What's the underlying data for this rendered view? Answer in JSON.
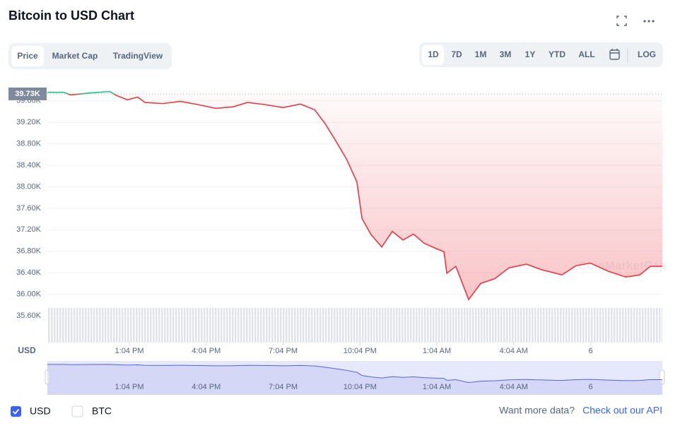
{
  "ui": {
    "title": "Bitcoin to USD Chart",
    "tabs": [
      "Price",
      "Market Cap",
      "TradingView"
    ],
    "ranges": [
      "1D",
      "7D",
      "1M",
      "3M",
      "1Y",
      "YTD",
      "ALL"
    ],
    "log": "LOG",
    "currencies": [
      "USD",
      "BTC"
    ],
    "footer": "Want more data?",
    "link": "Check out our API",
    "watermark": "CoinMarketCap"
  },
  "chart_data": {
    "type": "line",
    "y_label": "USD",
    "x": [
      0,
      0.63,
      0.91,
      1.74,
      2.43,
      2.7,
      3.12,
      3.53,
      3.81,
      4.5,
      5.19,
      5.88,
      6.57,
      7.26,
      7.81,
      8.5,
      9.19,
      9.88,
      10.43,
      10.84,
      11.26,
      11.67,
      12.08,
      12.28,
      12.63,
      13.05,
      13.46,
      13.88,
      14.29,
      14.7,
      15.12,
      15.48,
      15.59,
      15.94,
      16.44,
      16.91,
      17.46,
      18.01,
      18.7,
      19.26,
      20.08,
      20.63,
      21.19,
      21.88,
      22.57,
      23.12,
      23.53,
      24
    ],
    "series": [
      {
        "name": "USD",
        "values": [
          39760,
          39760,
          39710,
          39750,
          39775,
          39700,
          39620,
          39670,
          39570,
          39550,
          39590,
          39530,
          39460,
          39490,
          39570,
          39530,
          39475,
          39540,
          39435,
          39175,
          38850,
          38520,
          38090,
          37410,
          37110,
          36880,
          37170,
          37010,
          37120,
          36950,
          36860,
          36790,
          36390,
          36520,
          35900,
          36200,
          36290,
          36490,
          36560,
          36460,
          36360,
          36530,
          36580,
          36430,
          36320,
          36360,
          36520,
          36520
        ],
        "color_up": "#16c784",
        "color_down": "#ea3943"
      }
    ],
    "reference": {
      "value": 39730,
      "label": "39.73K"
    },
    "xlim": [
      0,
      24
    ],
    "ylim": [
      35100,
      39900
    ],
    "xticks": [
      {
        "value": 3.2,
        "label": "1:04 PM"
      },
      {
        "value": 6.2,
        "label": "4:04 PM"
      },
      {
        "value": 9.2,
        "label": "7:04 PM"
      },
      {
        "value": 12.2,
        "label": "10:04 PM"
      },
      {
        "value": 15.2,
        "label": "1:04 AM"
      },
      {
        "value": 18.2,
        "label": "4:04 AM"
      },
      {
        "value": 21.2,
        "label": "6"
      }
    ],
    "yticks": [
      {
        "value": 35600,
        "label": "35.60K"
      },
      {
        "value": 36000,
        "label": "36.00K"
      },
      {
        "value": 36400,
        "label": "36.40K"
      },
      {
        "value": 36800,
        "label": "36.80K"
      },
      {
        "value": 37200,
        "label": "37.20K"
      },
      {
        "value": 37600,
        "label": "37.60K"
      },
      {
        "value": 38000,
        "label": "38.00K"
      },
      {
        "value": 38400,
        "label": "38.40K"
      },
      {
        "value": 38800,
        "label": "38.80K"
      },
      {
        "value": 39200,
        "label": "39.20K"
      },
      {
        "value": 39600,
        "label": "39.60K"
      }
    ],
    "grid": true
  }
}
